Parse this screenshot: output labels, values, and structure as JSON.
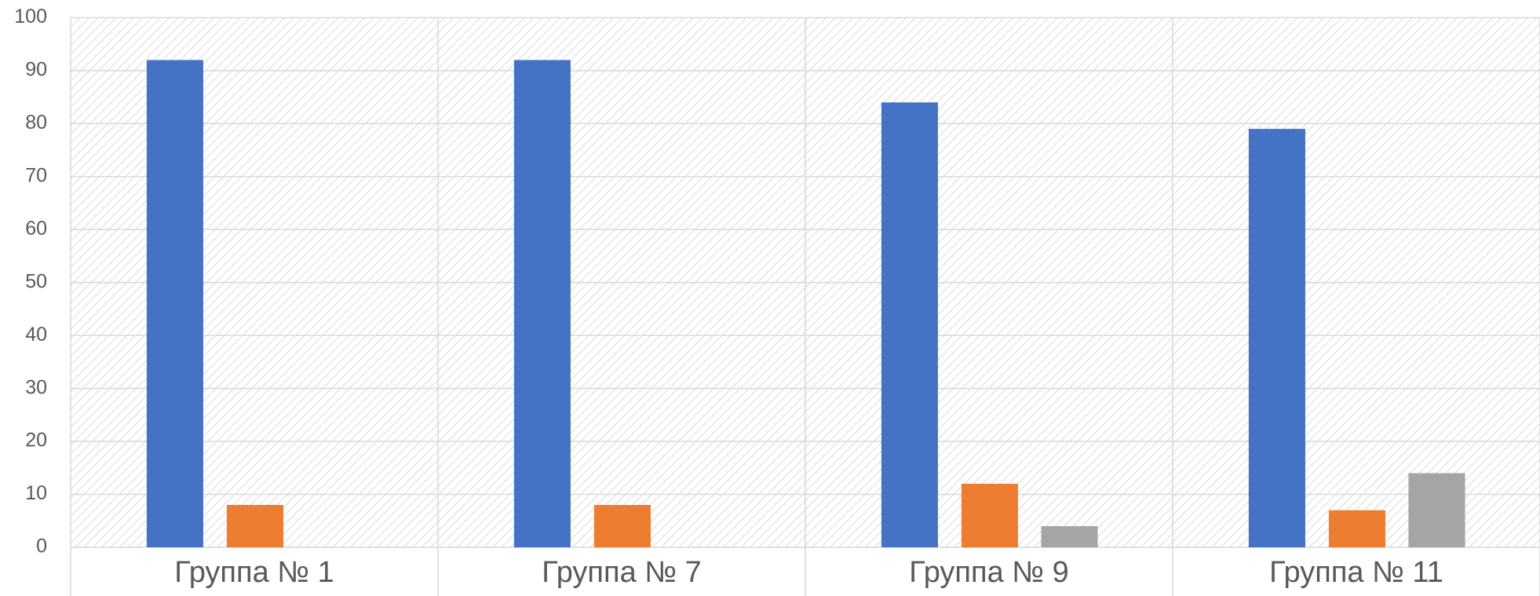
{
  "chart_data": {
    "type": "bar",
    "categories": [
      "Группа № 1",
      "Группа № 7",
      "Группа № 9",
      "Группа № 11"
    ],
    "series": [
      {
        "color": "#4472c4",
        "values": [
          92,
          92,
          84,
          79
        ]
      },
      {
        "color": "#ed7d31",
        "values": [
          8,
          8,
          12,
          7
        ]
      },
      {
        "color": "#a5a5a5",
        "values": [
          null,
          null,
          4,
          14
        ]
      }
    ],
    "ylim": [
      0,
      100
    ],
    "yticks": [
      0,
      10,
      20,
      30,
      40,
      50,
      60,
      70,
      80,
      90,
      100
    ],
    "grid": true
  }
}
